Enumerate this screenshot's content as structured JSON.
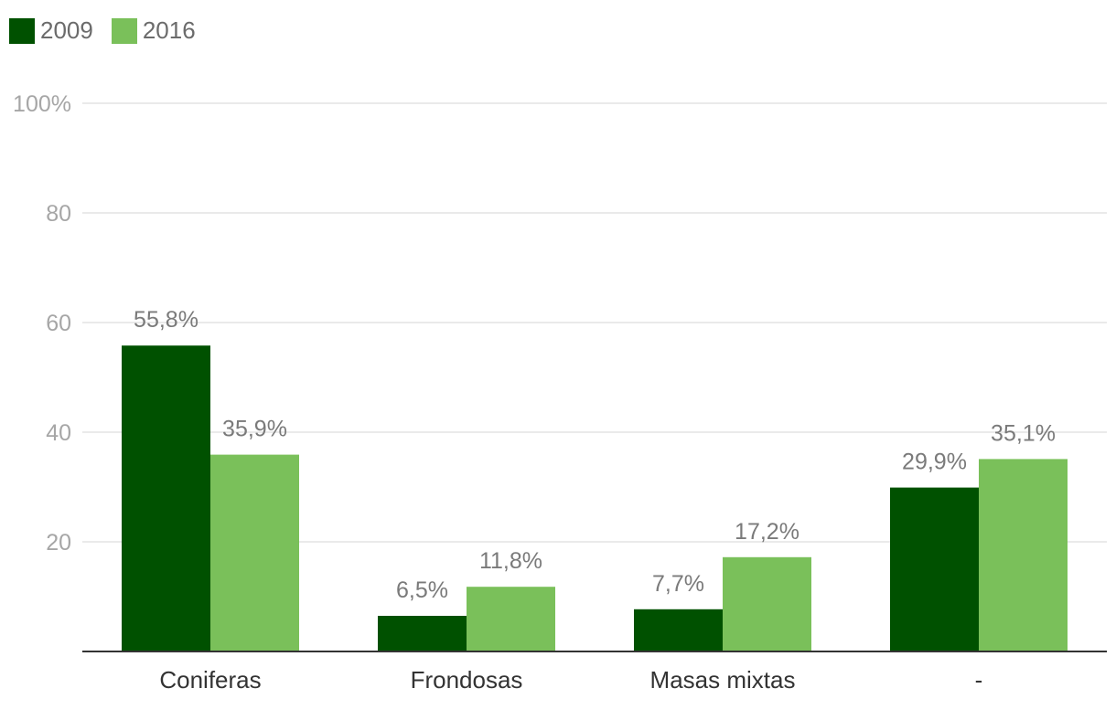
{
  "chart_data": {
    "type": "bar",
    "categories": [
      "Coniferas",
      "Frondosas",
      "Masas mixtas",
      "-"
    ],
    "series": [
      {
        "name": "2009",
        "color": "#005100",
        "values": [
          55.8,
          6.5,
          7.7,
          29.9
        ],
        "labels": [
          "55,8%",
          "6,5%",
          "7,7%",
          "29,9%"
        ]
      },
      {
        "name": "2016",
        "color": "#7ac05a",
        "values": [
          35.9,
          11.8,
          17.2,
          35.1
        ],
        "labels": [
          "35,9%",
          "11,8%",
          "17,2%",
          "35,1%"
        ]
      }
    ],
    "yticks": [
      {
        "value": 20,
        "label": "20"
      },
      {
        "value": 40,
        "label": "40"
      },
      {
        "value": 60,
        "label": "60"
      },
      {
        "value": 80,
        "label": "80"
      },
      {
        "value": 100,
        "label": "100%"
      }
    ],
    "ylim": [
      0,
      100
    ],
    "grid": true,
    "legend_position": "top-left",
    "colors": {
      "grid": "#e3e3e3",
      "axis": "#333333",
      "tick_label": "#a6a6a6",
      "data_label": "#7a7a7a",
      "category_label": "#333333"
    }
  }
}
